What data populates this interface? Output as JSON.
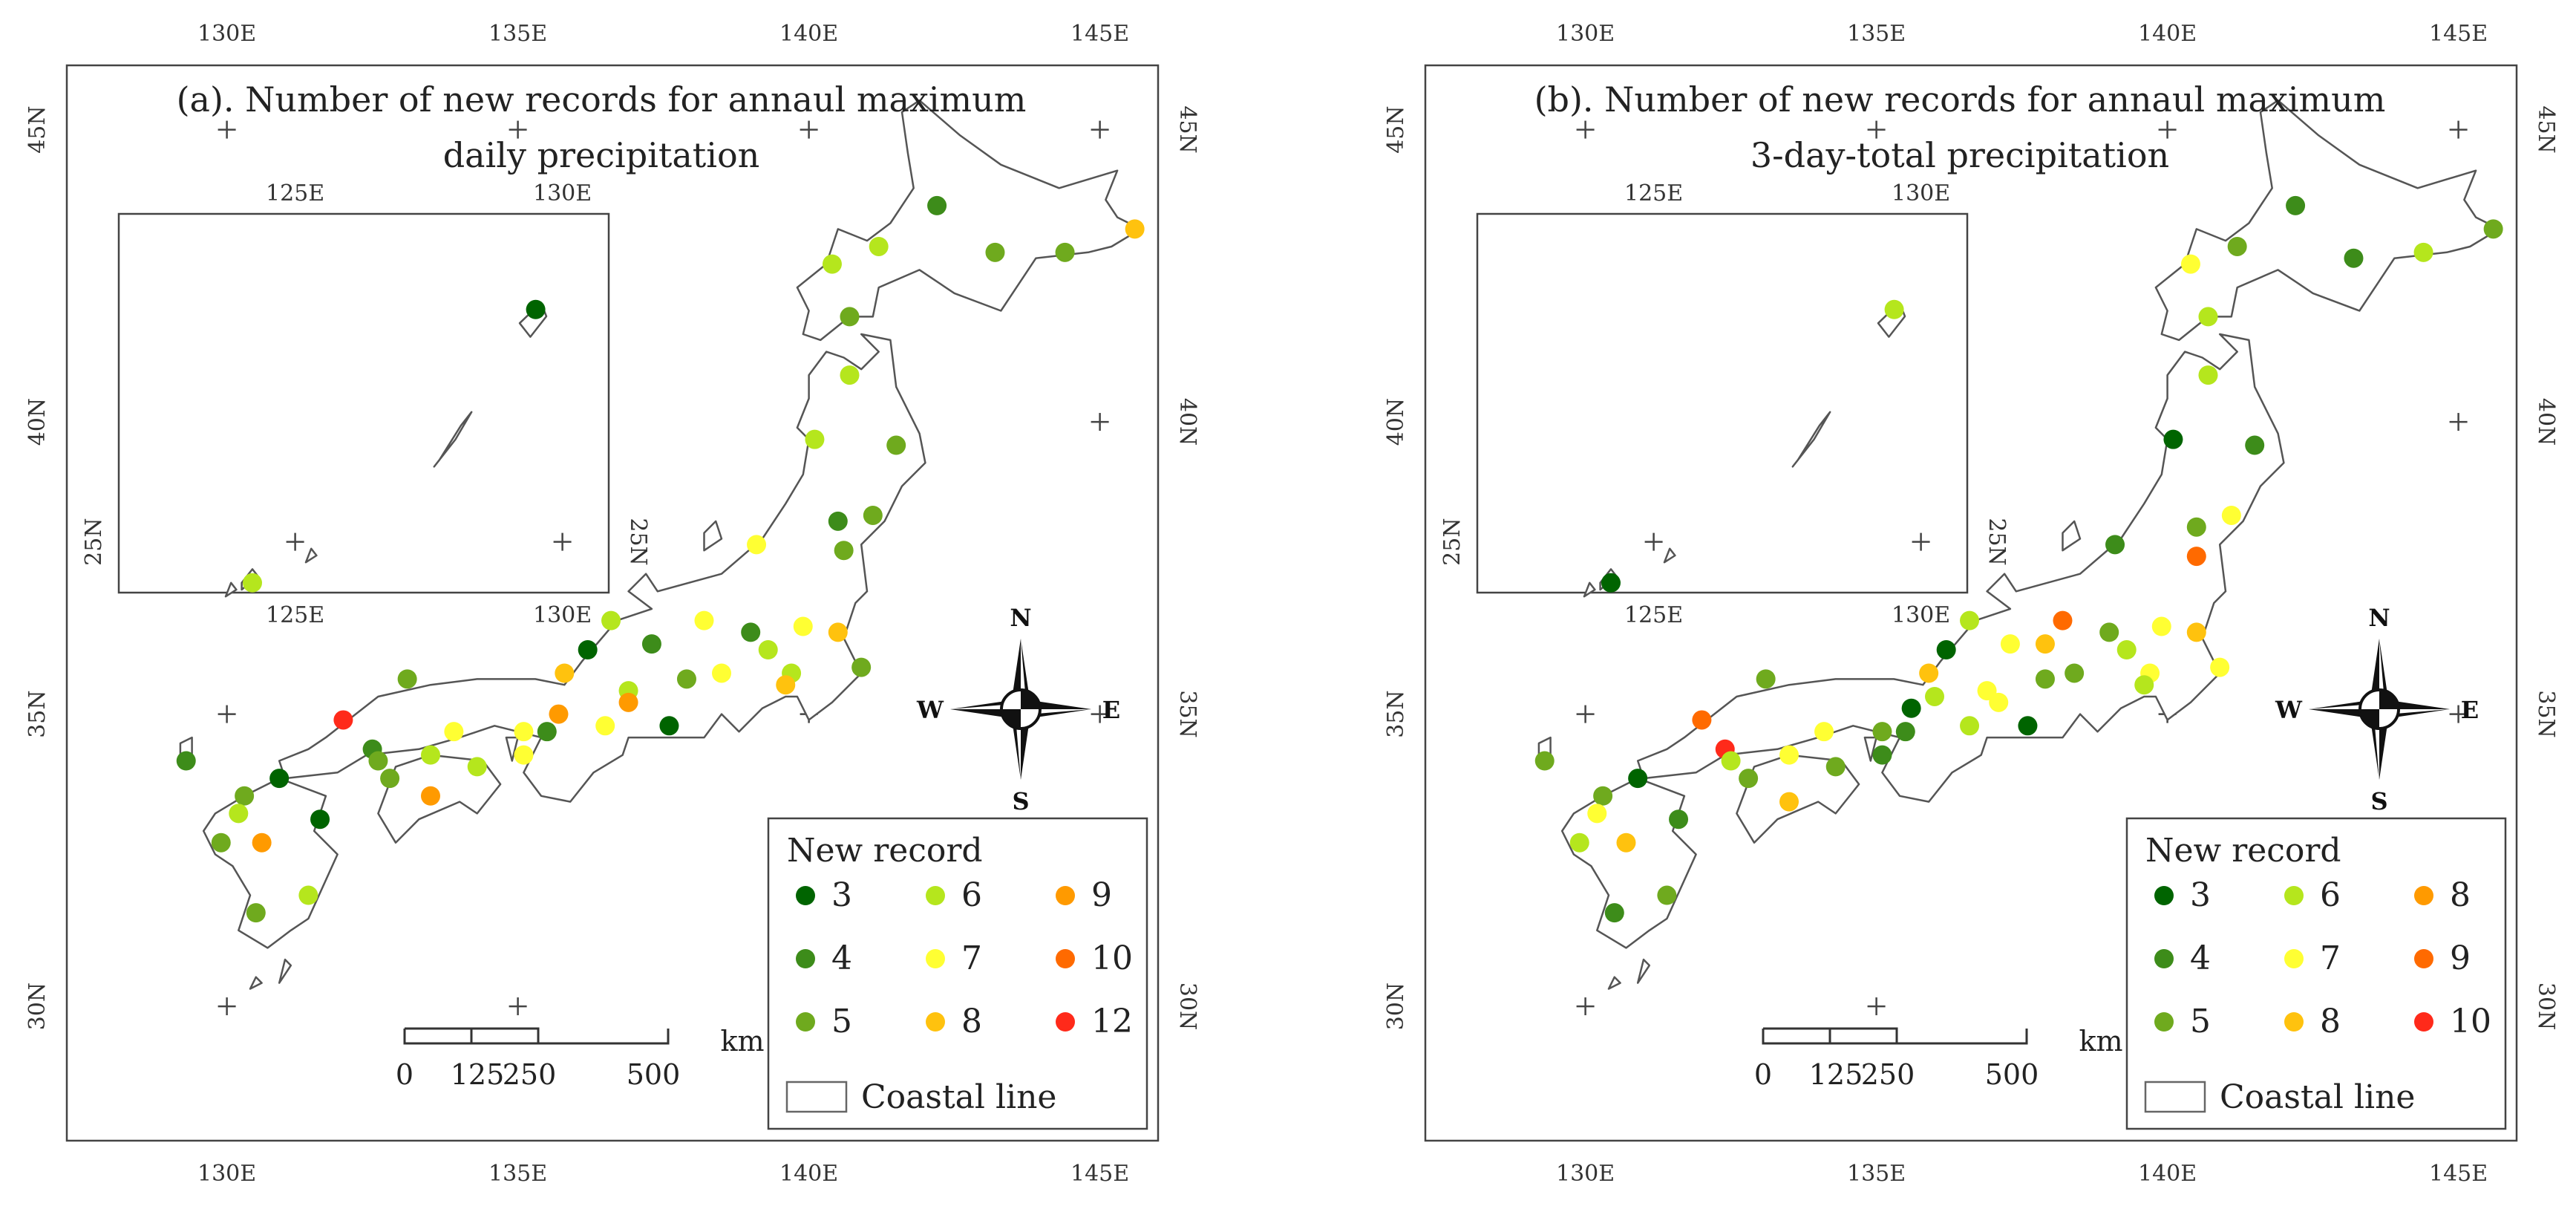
{
  "panels": [
    {
      "id": "a",
      "title_line1": "(a). Number of new records for annaul maximum",
      "title_line2": "daily precipitation",
      "legend_title": "New record",
      "legend": [
        {
          "value": 3,
          "label": "3",
          "color": "#006400"
        },
        {
          "value": 4,
          "label": "4",
          "color": "#3d8c1a"
        },
        {
          "value": 5,
          "label": "5",
          "color": "#6faa1e"
        },
        {
          "value": 6,
          "label": "6",
          "color": "#b5e61d"
        },
        {
          "value": 7,
          "label": "7",
          "color": "#ffff33"
        },
        {
          "value": 8,
          "label": "8",
          "color": "#ffc20e"
        },
        {
          "value": 9,
          "label": "9",
          "color": "#ff9a00"
        },
        {
          "value": 10,
          "label": "10",
          "color": "#ff6a00"
        },
        {
          "value": 12,
          "label": "12",
          "color": "#ff2a1a"
        }
      ],
      "stations": [
        {
          "lon": 142.2,
          "lat": 43.7,
          "v": 4
        },
        {
          "lon": 141.2,
          "lat": 43.0,
          "v": 6
        },
        {
          "lon": 143.2,
          "lat": 42.9,
          "v": 5
        },
        {
          "lon": 144.4,
          "lat": 42.9,
          "v": 5
        },
        {
          "lon": 145.6,
          "lat": 43.3,
          "v": 8
        },
        {
          "lon": 140.4,
          "lat": 42.7,
          "v": 6
        },
        {
          "lon": 140.7,
          "lat": 41.8,
          "v": 5
        },
        {
          "lon": 140.7,
          "lat": 40.8,
          "v": 6
        },
        {
          "lon": 140.1,
          "lat": 39.7,
          "v": 6
        },
        {
          "lon": 141.5,
          "lat": 39.6,
          "v": 5
        },
        {
          "lon": 140.5,
          "lat": 38.3,
          "v": 4
        },
        {
          "lon": 140.6,
          "lat": 37.8,
          "v": 5
        },
        {
          "lon": 141.1,
          "lat": 38.4,
          "v": 5
        },
        {
          "lon": 139.1,
          "lat": 37.9,
          "v": 7
        },
        {
          "lon": 136.6,
          "lat": 36.6,
          "v": 6
        },
        {
          "lon": 137.3,
          "lat": 36.2,
          "v": 4
        },
        {
          "lon": 138.2,
          "lat": 36.6,
          "v": 7
        },
        {
          "lon": 139.0,
          "lat": 36.4,
          "v": 4
        },
        {
          "lon": 139.3,
          "lat": 36.1,
          "v": 6
        },
        {
          "lon": 139.9,
          "lat": 36.5,
          "v": 7
        },
        {
          "lon": 140.5,
          "lat": 36.4,
          "v": 8
        },
        {
          "lon": 140.9,
          "lat": 35.8,
          "v": 5
        },
        {
          "lon": 139.7,
          "lat": 35.7,
          "v": 6
        },
        {
          "lon": 139.6,
          "lat": 35.5,
          "v": 8
        },
        {
          "lon": 138.5,
          "lat": 35.7,
          "v": 7
        },
        {
          "lon": 137.9,
          "lat": 35.6,
          "v": 5
        },
        {
          "lon": 136.9,
          "lat": 35.4,
          "v": 6
        },
        {
          "lon": 136.5,
          "lat": 34.8,
          "v": 7
        },
        {
          "lon": 137.6,
          "lat": 34.8,
          "v": 3
        },
        {
          "lon": 136.9,
          "lat": 35.2,
          "v": 9
        },
        {
          "lon": 136.2,
          "lat": 36.1,
          "v": 3
        },
        {
          "lon": 135.8,
          "lat": 35.7,
          "v": 8
        },
        {
          "lon": 135.7,
          "lat": 35.0,
          "v": 9
        },
        {
          "lon": 135.5,
          "lat": 34.7,
          "v": 4
        },
        {
          "lon": 135.1,
          "lat": 34.7,
          "v": 7
        },
        {
          "lon": 135.1,
          "lat": 34.3,
          "v": 7
        },
        {
          "lon": 134.3,
          "lat": 34.1,
          "v": 6
        },
        {
          "lon": 133.9,
          "lat": 34.7,
          "v": 7
        },
        {
          "lon": 133.5,
          "lat": 34.3,
          "v": 6
        },
        {
          "lon": 133.1,
          "lat": 35.6,
          "v": 5
        },
        {
          "lon": 132.0,
          "lat": 34.9,
          "v": 12
        },
        {
          "lon": 132.5,
          "lat": 34.4,
          "v": 4
        },
        {
          "lon": 132.6,
          "lat": 34.2,
          "v": 5
        },
        {
          "lon": 132.8,
          "lat": 33.9,
          "v": 5
        },
        {
          "lon": 133.5,
          "lat": 33.6,
          "v": 9
        },
        {
          "lon": 130.9,
          "lat": 33.9,
          "v": 3
        },
        {
          "lon": 131.6,
          "lat": 33.2,
          "v": 3
        },
        {
          "lon": 130.3,
          "lat": 33.6,
          "v": 5
        },
        {
          "lon": 130.2,
          "lat": 33.3,
          "v": 6
        },
        {
          "lon": 130.6,
          "lat": 32.8,
          "v": 9
        },
        {
          "lon": 129.9,
          "lat": 32.8,
          "v": 5
        },
        {
          "lon": 131.4,
          "lat": 31.9,
          "v": 6
        },
        {
          "lon": 130.5,
          "lat": 31.6,
          "v": 5
        },
        {
          "lon": 129.3,
          "lat": 34.2,
          "v": 4
        }
      ],
      "inset_stations": [
        {
          "lon": 129.5,
          "lat": 28.4,
          "v": 3
        },
        {
          "lon": 124.2,
          "lat": 24.4,
          "v": 6
        }
      ]
    },
    {
      "id": "b",
      "title_line1": "(b). Number of new records for annaul maximum",
      "title_line2": "3-day-total precipitation",
      "legend_title": "New record",
      "legend": [
        {
          "value": 3,
          "label": "3",
          "color": "#006400"
        },
        {
          "value": 4,
          "label": "4",
          "color": "#3d8c1a"
        },
        {
          "value": 5,
          "label": "5",
          "color": "#6faa1e"
        },
        {
          "value": 6,
          "label": "6",
          "color": "#b5e61d"
        },
        {
          "value": 7,
          "label": "7",
          "color": "#ffff33"
        },
        {
          "value": 8,
          "label": "8",
          "color": "#ffc20e"
        },
        {
          "value": 8,
          "label": "8",
          "color": "#ff9a00"
        },
        {
          "value": 9,
          "label": "9",
          "color": "#ff6a00"
        },
        {
          "value": 10,
          "label": "10",
          "color": "#ff2a1a"
        }
      ],
      "stations": [
        {
          "lon": 142.2,
          "lat": 43.7,
          "v": 4
        },
        {
          "lon": 141.2,
          "lat": 43.0,
          "v": 5
        },
        {
          "lon": 143.2,
          "lat": 42.8,
          "v": 4
        },
        {
          "lon": 144.4,
          "lat": 42.9,
          "v": 6
        },
        {
          "lon": 145.6,
          "lat": 43.3,
          "v": 5
        },
        {
          "lon": 140.4,
          "lat": 42.7,
          "v": 7
        },
        {
          "lon": 140.7,
          "lat": 41.8,
          "v": 6
        },
        {
          "lon": 140.7,
          "lat": 40.8,
          "v": 6
        },
        {
          "lon": 140.1,
          "lat": 39.7,
          "v": 3
        },
        {
          "lon": 141.5,
          "lat": 39.6,
          "v": 4
        },
        {
          "lon": 140.5,
          "lat": 38.2,
          "v": 5
        },
        {
          "lon": 139.1,
          "lat": 37.9,
          "v": 4
        },
        {
          "lon": 141.1,
          "lat": 38.4,
          "v": 7
        },
        {
          "lon": 140.5,
          "lat": 37.7,
          "v": 9
        },
        {
          "lon": 136.6,
          "lat": 36.6,
          "v": 6
        },
        {
          "lon": 137.3,
          "lat": 36.2,
          "v": 7
        },
        {
          "lon": 137.9,
          "lat": 36.2,
          "v": 8
        },
        {
          "lon": 138.2,
          "lat": 36.6,
          "v": 9
        },
        {
          "lon": 139.0,
          "lat": 36.4,
          "v": 5
        },
        {
          "lon": 139.3,
          "lat": 36.1,
          "v": 6
        },
        {
          "lon": 139.9,
          "lat": 36.5,
          "v": 7
        },
        {
          "lon": 140.5,
          "lat": 36.4,
          "v": 8
        },
        {
          "lon": 140.9,
          "lat": 35.8,
          "v": 7
        },
        {
          "lon": 139.7,
          "lat": 35.7,
          "v": 7
        },
        {
          "lon": 139.6,
          "lat": 35.5,
          "v": 6
        },
        {
          "lon": 138.4,
          "lat": 35.7,
          "v": 5
        },
        {
          "lon": 137.9,
          "lat": 35.6,
          "v": 5
        },
        {
          "lon": 136.9,
          "lat": 35.4,
          "v": 7
        },
        {
          "lon": 136.6,
          "lat": 34.8,
          "v": 6
        },
        {
          "lon": 137.6,
          "lat": 34.8,
          "v": 3
        },
        {
          "lon": 137.1,
          "lat": 35.2,
          "v": 7
        },
        {
          "lon": 136.2,
          "lat": 36.1,
          "v": 3
        },
        {
          "lon": 135.9,
          "lat": 35.7,
          "v": 8
        },
        {
          "lon": 136.0,
          "lat": 35.3,
          "v": 6
        },
        {
          "lon": 135.6,
          "lat": 35.1,
          "v": 3
        },
        {
          "lon": 135.5,
          "lat": 34.7,
          "v": 4
        },
        {
          "lon": 135.1,
          "lat": 34.7,
          "v": 5
        },
        {
          "lon": 135.1,
          "lat": 34.3,
          "v": 4
        },
        {
          "lon": 134.3,
          "lat": 34.1,
          "v": 5
        },
        {
          "lon": 134.1,
          "lat": 34.7,
          "v": 7
        },
        {
          "lon": 133.5,
          "lat": 34.3,
          "v": 7
        },
        {
          "lon": 133.1,
          "lat": 35.6,
          "v": 5
        },
        {
          "lon": 132.0,
          "lat": 34.9,
          "v": 9
        },
        {
          "lon": 132.4,
          "lat": 34.4,
          "v": 10
        },
        {
          "lon": 132.5,
          "lat": 34.2,
          "v": 6
        },
        {
          "lon": 132.8,
          "lat": 33.9,
          "v": 5
        },
        {
          "lon": 133.5,
          "lat": 33.5,
          "v": 8
        },
        {
          "lon": 130.9,
          "lat": 33.9,
          "v": 3
        },
        {
          "lon": 131.6,
          "lat": 33.2,
          "v": 4
        },
        {
          "lon": 130.3,
          "lat": 33.6,
          "v": 5
        },
        {
          "lon": 130.2,
          "lat": 33.3,
          "v": 7
        },
        {
          "lon": 130.7,
          "lat": 32.8,
          "v": 8
        },
        {
          "lon": 129.9,
          "lat": 32.8,
          "v": 6
        },
        {
          "lon": 131.4,
          "lat": 31.9,
          "v": 5
        },
        {
          "lon": 130.5,
          "lat": 31.6,
          "v": 4
        },
        {
          "lon": 129.3,
          "lat": 34.2,
          "v": 5
        }
      ],
      "inset_stations": [
        {
          "lon": 129.5,
          "lat": 28.4,
          "v": 6
        },
        {
          "lon": 124.2,
          "lat": 24.4,
          "v": 3
        }
      ]
    }
  ],
  "axes": {
    "lon_labels": [
      "130E",
      "135E",
      "140E",
      "145E"
    ],
    "lat_labels": [
      "30N",
      "35N",
      "40N",
      "45N"
    ],
    "inset_lon_labels": [
      "125E",
      "130E"
    ],
    "inset_lat_labels": [
      "25N"
    ]
  },
  "scalebar": {
    "labels": [
      "0",
      "125",
      "250",
      "500"
    ],
    "unit": "km"
  },
  "compass": {
    "n": "N",
    "s": "S",
    "e": "E",
    "w": "W"
  },
  "coastal_legend_label": "Coastal line"
}
